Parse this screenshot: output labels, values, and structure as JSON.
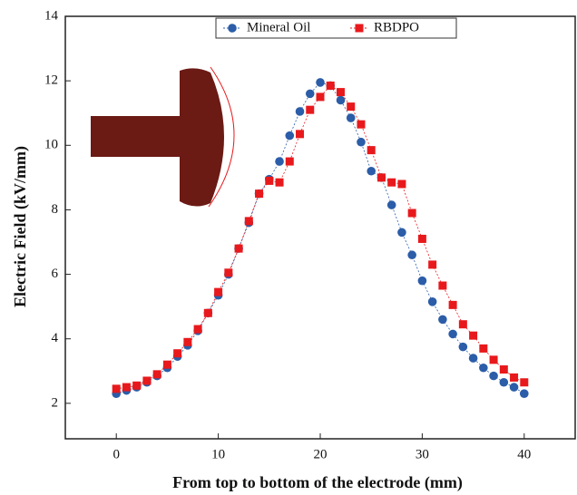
{
  "chart_data": {
    "type": "line",
    "xlabel": "From top to bottom of the electrode (mm)",
    "ylabel": "Electric Field (kV/mm)",
    "x": [
      0,
      1,
      2,
      3,
      4,
      5,
      6,
      7,
      8,
      9,
      10,
      11,
      12,
      13,
      14,
      15,
      16,
      17,
      18,
      19,
      20,
      21,
      22,
      23,
      24,
      25,
      26,
      27,
      28,
      29,
      30,
      31,
      32,
      33,
      34,
      35,
      36,
      37,
      38,
      39,
      40
    ],
    "series": [
      {
        "name": "Mineral Oil",
        "color": "#2b5da8",
        "marker": "circle",
        "values": [
          2.3,
          2.4,
          2.5,
          2.65,
          2.85,
          3.1,
          3.45,
          3.8,
          4.25,
          4.8,
          5.35,
          6.0,
          6.8,
          7.6,
          8.5,
          8.95,
          9.5,
          10.3,
          11.05,
          11.6,
          11.95,
          11.85,
          11.4,
          10.85,
          10.1,
          9.2,
          9.0,
          8.15,
          7.3,
          6.6,
          5.8,
          5.15,
          4.6,
          4.15,
          3.75,
          3.4,
          3.1,
          2.85,
          2.65,
          2.5,
          2.3
        ]
      },
      {
        "name": "RBDPO",
        "color": "#e8191c",
        "marker": "square",
        "values": [
          2.45,
          2.5,
          2.55,
          2.7,
          2.9,
          3.2,
          3.55,
          3.9,
          4.3,
          4.8,
          5.45,
          6.05,
          6.8,
          7.65,
          8.5,
          8.9,
          8.85,
          9.5,
          10.35,
          11.1,
          11.5,
          11.85,
          11.65,
          11.2,
          10.65,
          9.85,
          9.0,
          8.85,
          8.8,
          7.9,
          7.1,
          6.3,
          5.65,
          5.05,
          4.45,
          4.1,
          3.7,
          3.35,
          3.05,
          2.8,
          2.65
        ]
      }
    ],
    "xlim": [
      -5,
      45
    ],
    "xticks": [
      0,
      10,
      20,
      30,
      40
    ],
    "ylim": [
      0.9,
      14
    ],
    "yticks": [
      2,
      4,
      6,
      8,
      10,
      12,
      14
    ],
    "legend": "top"
  }
}
